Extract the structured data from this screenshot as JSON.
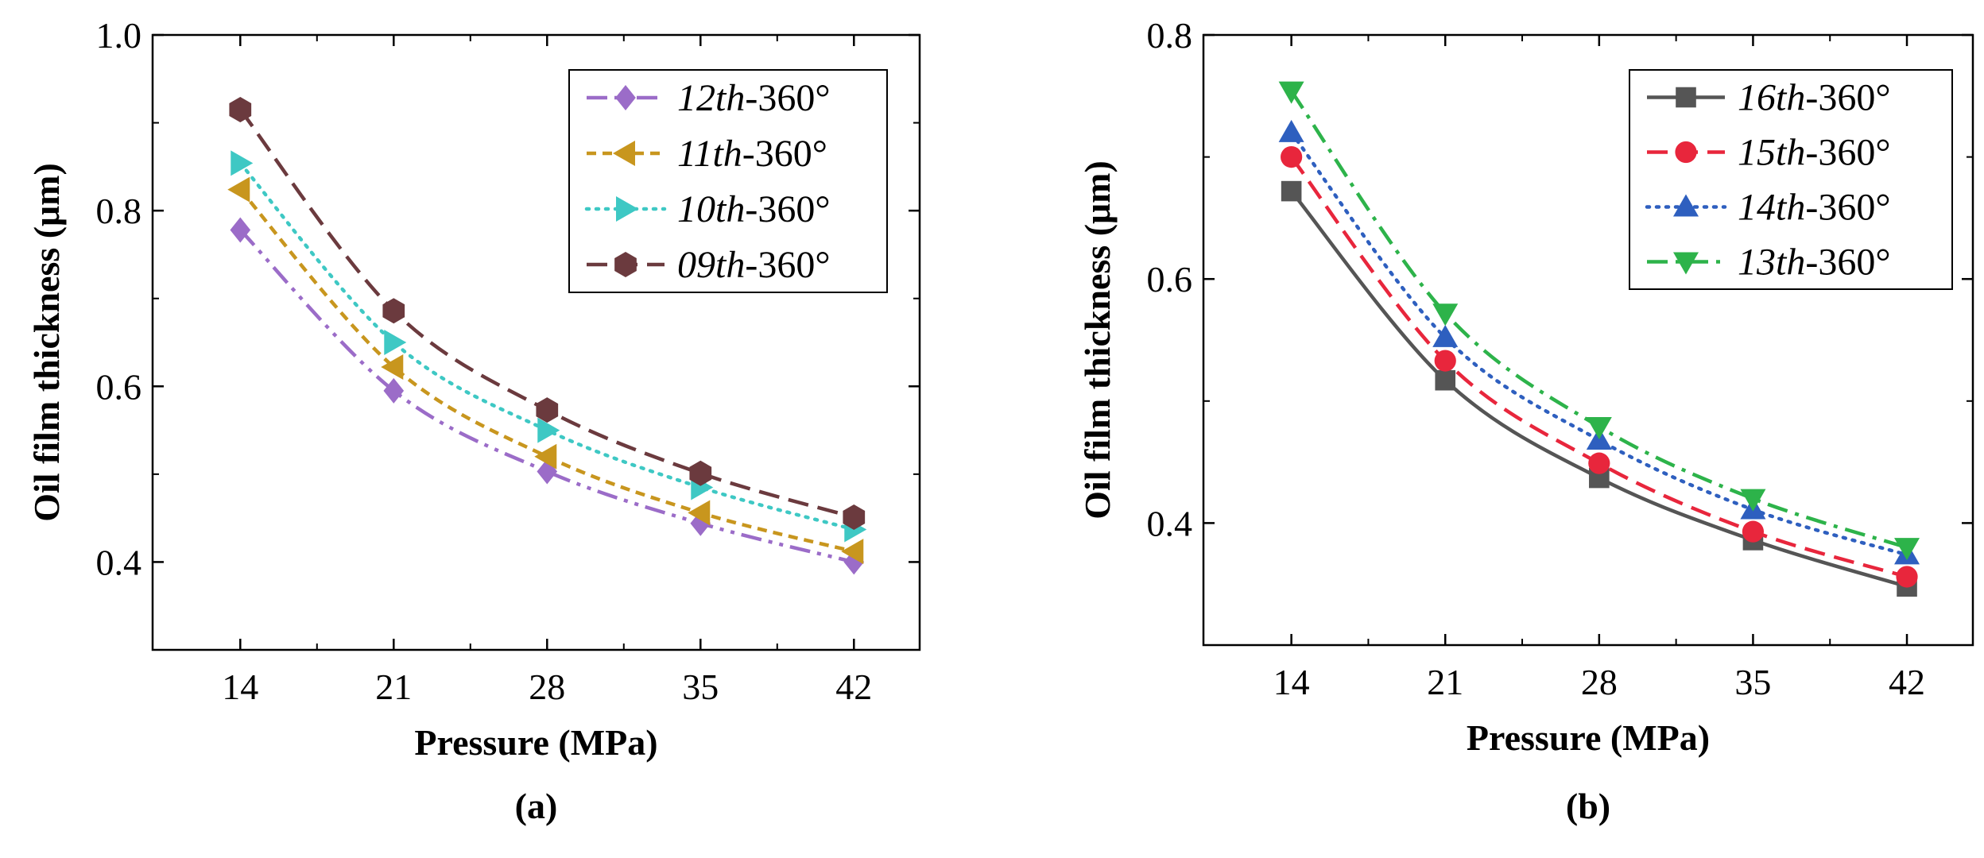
{
  "chart_data": [
    {
      "type": "line",
      "panel_label": "(a)",
      "xlabel": "Pressure (MPa)",
      "ylabel": "Oil film thickness (μm)",
      "x": [
        14,
        21,
        28,
        35,
        42
      ],
      "x_ticks": [
        "14",
        "21",
        "28",
        "35",
        "42"
      ],
      "xlim": [
        10,
        45
      ],
      "ylim": [
        0.3,
        1.0
      ],
      "y_ticks": [
        "0.4",
        "0.6",
        "0.8",
        "1.0"
      ],
      "y_tick_values": [
        0.4,
        0.6,
        0.8,
        1.0
      ],
      "legend_position": "top-right",
      "series": [
        {
          "name_italic": "12th",
          "name_suffix": "-360°",
          "values": [
            0.778,
            0.595,
            0.503,
            0.444,
            0.4
          ],
          "color": "#9b6cc8",
          "marker": "diamond",
          "dash": "dashdotdot"
        },
        {
          "name_italic": "11th",
          "name_suffix": "-360°",
          "values": [
            0.824,
            0.622,
            0.52,
            0.456,
            0.412
          ],
          "color": "#c8961e",
          "marker": "triangle-left",
          "dash": "short-dash"
        },
        {
          "name_italic": "10th",
          "name_suffix": "-360°",
          "values": [
            0.854,
            0.65,
            0.55,
            0.485,
            0.437
          ],
          "color": "#3ec8c4",
          "marker": "triangle-right",
          "dash": "dotted"
        },
        {
          "name_italic": "09th",
          "name_suffix": "-360°",
          "values": [
            0.915,
            0.686,
            0.573,
            0.501,
            0.451
          ],
          "color": "#6b3a3e",
          "marker": "hexagon",
          "dash": "dashed"
        }
      ]
    },
    {
      "type": "line",
      "panel_label": "(b)",
      "xlabel": "Pressure (MPa)",
      "ylabel": "Oil film thickness (μm)",
      "x": [
        14,
        21,
        28,
        35,
        42
      ],
      "x_ticks": [
        "14",
        "21",
        "28",
        "35",
        "42"
      ],
      "xlim": [
        10,
        45
      ],
      "ylim": [
        0.3,
        0.8
      ],
      "y_ticks": [
        "0.4",
        "0.6",
        "0.8"
      ],
      "y_tick_values": [
        0.4,
        0.6,
        0.8
      ],
      "legend_position": "top-right",
      "series": [
        {
          "name_italic": "16th",
          "name_suffix": "-360°",
          "values": [
            0.672,
            0.517,
            0.437,
            0.386,
            0.348
          ],
          "color": "#555555",
          "marker": "square",
          "dash": "solid"
        },
        {
          "name_italic": "15th",
          "name_suffix": "-360°",
          "values": [
            0.7,
            0.533,
            0.449,
            0.393,
            0.356
          ],
          "color": "#e8263c",
          "marker": "circle",
          "dash": "dashed"
        },
        {
          "name_italic": "14th",
          "name_suffix": "-360°",
          "values": [
            0.72,
            0.552,
            0.468,
            0.411,
            0.374
          ],
          "color": "#2e5fbf",
          "marker": "triangle-up",
          "dash": "dotted"
        },
        {
          "name_italic": "13th",
          "name_suffix": "-360°",
          "values": [
            0.754,
            0.572,
            0.479,
            0.42,
            0.38
          ],
          "color": "#2db34a",
          "marker": "triangle-down",
          "dash": "dashdot"
        }
      ]
    }
  ]
}
